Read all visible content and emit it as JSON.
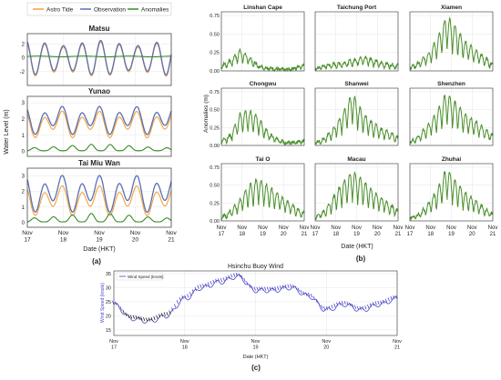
{
  "panel_labels": {
    "a": "(a)",
    "b": "(b)",
    "c": "(c)"
  },
  "colors": {
    "astro": "#f2a33a",
    "observation": "#5a6fb5",
    "anomalies": "#3a8c2a",
    "anomaly_line": "#4a8f2b",
    "wind": "#4a46c8",
    "wind_dark": "#222222",
    "grid": "#e6e6e6"
  },
  "chart_data": [
    {
      "id": "a",
      "type": "line",
      "legend": [
        "Astro Tide",
        "Observation",
        "Anomalies"
      ],
      "legend_position": "top",
      "ylabel": "Water Level (m)",
      "xlabel": "Date (HKT)",
      "xticks": [
        "Nov\n17",
        "Nov\n18",
        "Nov\n19",
        "Nov\n20",
        "Nov\n21"
      ],
      "subplots": [
        {
          "title": "Matsu",
          "ylim": [
            -4,
            3.5
          ],
          "yticks": [
            -2,
            0,
            2
          ],
          "series": [
            {
              "name": "Astro Tide",
              "type": "semidiurnal",
              "amplitude": 2.5,
              "offset": -0.2
            },
            {
              "name": "Observation",
              "type": "semidiurnal",
              "amplitude": 2.5,
              "offset": 0
            },
            {
              "name": "Anomalies",
              "type": "flat",
              "level": 0.2
            }
          ]
        },
        {
          "title": "Yunao",
          "ylim": [
            -0.3,
            3.4
          ],
          "yticks": [
            0,
            1,
            2,
            3
          ],
          "series": [
            {
              "name": "Astro Tide",
              "type": "mixed",
              "low": 0.8,
              "high": 2.6
            },
            {
              "name": "Observation",
              "type": "mixed",
              "low": 1.0,
              "high": 2.9
            },
            {
              "name": "Anomalies",
              "type": "bumps",
              "base": 0.05,
              "peak": 0.45
            }
          ]
        },
        {
          "title": "Tai Miu Wan",
          "ylim": [
            -0.3,
            3.5
          ],
          "yticks": [
            0,
            1,
            2,
            3
          ],
          "series": [
            {
              "name": "Astro Tide",
              "type": "mixed",
              "low": 0.4,
              "high": 2.5
            },
            {
              "name": "Observation",
              "type": "mixed",
              "low": 0.6,
              "high": 3.2
            },
            {
              "name": "Anomalies",
              "type": "bumps",
              "base": 0.05,
              "peak": 0.6
            }
          ]
        }
      ]
    },
    {
      "id": "b",
      "type": "line",
      "ylabel": "Anomalies (m)",
      "xlabel": "Date (HKT)",
      "ylim": [
        0,
        0.8
      ],
      "yticks": [
        0,
        0.25,
        0.5,
        0.75
      ],
      "xticks": [
        "Nov\n17",
        "Nov\n18",
        "Nov\n19",
        "Nov\n20",
        "Nov\n21"
      ],
      "stations": [
        {
          "title": "Linshan Cape",
          "profile": [
            0.08,
            0.15,
            0.3,
            0.2,
            0.08,
            0.05,
            0.03,
            0.02,
            0.05,
            0.1
          ]
        },
        {
          "title": "Taichung Port",
          "profile": [
            0.03,
            0.08,
            0.1,
            0.12,
            0.15,
            0.2,
            0.18,
            0.12,
            0.1,
            0.08
          ]
        },
        {
          "title": "Xiamen",
          "profile": [
            0.05,
            0.12,
            0.25,
            0.45,
            0.75,
            0.6,
            0.4,
            0.3,
            0.2,
            0.1
          ]
        },
        {
          "title": "Chongwu",
          "profile": [
            0.08,
            0.15,
            0.45,
            0.5,
            0.4,
            0.2,
            0.1,
            0.05,
            0.05,
            0.08
          ]
        },
        {
          "title": "Shanwei",
          "profile": [
            0.05,
            0.1,
            0.25,
            0.45,
            0.75,
            0.5,
            0.35,
            0.25,
            0.2,
            0.12
          ]
        },
        {
          "title": "Shenzhen",
          "profile": [
            0.05,
            0.15,
            0.3,
            0.5,
            0.75,
            0.6,
            0.45,
            0.35,
            0.25,
            0.15
          ]
        },
        {
          "title": "Tai O",
          "profile": [
            0.05,
            0.15,
            0.3,
            0.5,
            0.6,
            0.5,
            0.4,
            0.3,
            0.2,
            0.12
          ]
        },
        {
          "title": "Macau",
          "profile": [
            0.05,
            0.15,
            0.35,
            0.55,
            0.7,
            0.6,
            0.45,
            0.35,
            0.25,
            0.15
          ]
        },
        {
          "title": "Zhuhai",
          "profile": [
            0.05,
            0.1,
            0.25,
            0.45,
            0.75,
            0.55,
            0.4,
            0.3,
            0.2,
            0.1
          ]
        }
      ]
    },
    {
      "id": "c",
      "type": "line",
      "title": "Hsinchu Buoy Wind",
      "legend": [
        "Wind Speed (knots)"
      ],
      "legend_position": "top-left",
      "ylabel": "Wind Speed (knots)",
      "xlabel": "Date (HKT)",
      "ylim": [
        13,
        36
      ],
      "yticks": [
        15,
        20,
        25,
        30,
        35
      ],
      "xticks": [
        "Nov\n17",
        "Nov\n18",
        "Nov\n19",
        "Nov\n20",
        "Nov\n21"
      ],
      "x": [
        0,
        0.25,
        0.5,
        0.75,
        1.0,
        1.25,
        1.5,
        1.75,
        2.0,
        2.25,
        2.5,
        2.75,
        3.0,
        3.25,
        3.5,
        3.75,
        4.0
      ],
      "values": [
        24,
        19,
        18,
        20,
        26,
        30,
        32,
        34,
        29,
        29,
        30,
        27,
        22,
        24,
        22,
        24,
        26
      ]
    }
  ]
}
